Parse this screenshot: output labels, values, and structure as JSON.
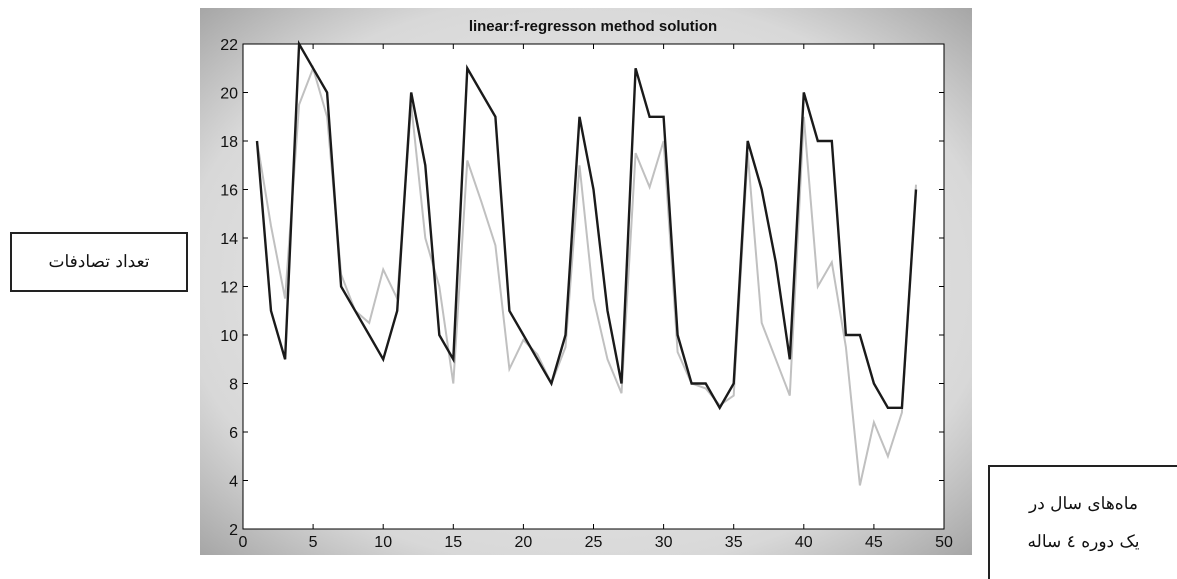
{
  "chart_data": {
    "type": "line",
    "title": "linear:f-regresson method solution",
    "ylabel": "تعداد تصادفات",
    "xlabel_lines": [
      "ماه‌های سال در",
      "یک دوره ٤ ساله"
    ],
    "xlim": [
      0,
      50
    ],
    "ylim": [
      2,
      22
    ],
    "xticks": [
      0,
      5,
      10,
      15,
      20,
      25,
      30,
      35,
      40,
      45,
      50
    ],
    "yticks": [
      2,
      4,
      6,
      8,
      10,
      12,
      14,
      16,
      18,
      20,
      22
    ],
    "grid": false,
    "x": [
      1,
      2,
      3,
      4,
      5,
      6,
      7,
      8,
      9,
      10,
      11,
      12,
      13,
      14,
      15,
      16,
      17,
      18,
      19,
      20,
      21,
      22,
      23,
      24,
      25,
      26,
      27,
      28,
      29,
      30,
      31,
      32,
      33,
      34,
      35,
      36,
      37,
      38,
      39,
      40,
      41,
      42,
      43,
      44,
      45,
      46,
      47,
      48
    ],
    "series": [
      {
        "color": "#1a1a1a",
        "values": [
          18,
          11,
          9,
          22,
          21,
          20,
          12,
          11,
          10,
          9,
          11,
          20,
          17,
          10,
          9,
          21,
          20,
          19,
          11,
          10,
          9,
          8,
          10,
          19,
          16,
          11,
          8,
          21,
          19,
          19,
          10,
          8,
          8,
          7,
          8,
          18,
          16,
          13,
          9,
          20,
          18,
          18,
          10,
          10,
          8,
          7,
          7,
          16
        ]
      },
      {
        "color": "#c0c0c0",
        "values": [
          18,
          14.5,
          11.5,
          19.5,
          21,
          19,
          12.5,
          11,
          10.5,
          12.7,
          11.5,
          19.5,
          14,
          12,
          8,
          17.2,
          15.5,
          13.7,
          8.6,
          9.8,
          9.2,
          8,
          9.5,
          17,
          11.5,
          9,
          7.6,
          17.5,
          16.1,
          18,
          9.3,
          8,
          7.8,
          7.1,
          7.5,
          17.5,
          10.5,
          9,
          7.5,
          19,
          12,
          13,
          9.5,
          3.8,
          6.4,
          5,
          6.8,
          16.2
        ]
      }
    ]
  }
}
